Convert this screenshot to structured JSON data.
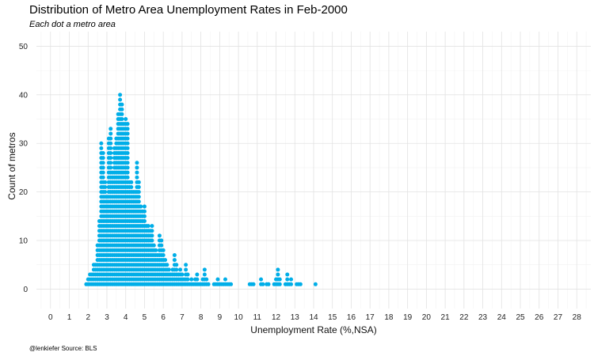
{
  "chart_data": {
    "type": "scatter",
    "title": "Distribution of Metro Area Unemployment Rates in Feb-2000",
    "subtitle": "Each dot a metro area",
    "xlabel": "Unemployment Rate (%,NSA)",
    "ylabel": "Count of metros",
    "caption": "@lenkiefer Source: BLS",
    "xlim": [
      -0.75,
      28.75
    ],
    "ylim": [
      -4,
      53
    ],
    "xticks": [
      0,
      1,
      2,
      3,
      4,
      5,
      6,
      7,
      8,
      9,
      10,
      11,
      12,
      13,
      14,
      15,
      16,
      17,
      18,
      19,
      20,
      21,
      22,
      23,
      24,
      25,
      26,
      27,
      28
    ],
    "yticks": [
      0,
      10,
      20,
      30,
      40,
      50
    ],
    "grid": true,
    "dot_color": "#00aee8",
    "bin_width": 0.1,
    "x": [
      1.9,
      2.0,
      2.1,
      2.2,
      2.3,
      2.4,
      2.5,
      2.6,
      2.7,
      2.8,
      2.9,
      3.0,
      3.1,
      3.2,
      3.3,
      3.4,
      3.5,
      3.6,
      3.7,
      3.8,
      3.9,
      4.0,
      4.1,
      4.2,
      4.3,
      4.4,
      4.5,
      4.6,
      4.7,
      4.8,
      4.9,
      5.0,
      5.1,
      5.2,
      5.3,
      5.4,
      5.5,
      5.6,
      5.7,
      5.8,
      5.9,
      6.0,
      6.1,
      6.2,
      6.3,
      6.4,
      6.5,
      6.6,
      6.7,
      6.8,
      6.9,
      7.0,
      7.1,
      7.2,
      7.3,
      7.4,
      7.5,
      7.6,
      7.7,
      7.8,
      7.9,
      8.0,
      8.1,
      8.2,
      8.3,
      8.4,
      8.7,
      8.8,
      8.9,
      9.0,
      9.1,
      9.2,
      9.3,
      9.4,
      9.5,
      9.6,
      10.6,
      10.7,
      10.8,
      11.2,
      11.3,
      11.5,
      11.6,
      11.9,
      12.0,
      12.1,
      12.2,
      12.5,
      12.6,
      12.7,
      12.8,
      13.1,
      13.2,
      13.3,
      14.1
    ],
    "y": [
      1,
      2,
      3,
      3,
      5,
      5,
      9,
      14,
      30,
      28,
      22,
      19,
      31,
      33,
      24,
      29,
      31,
      36,
      40,
      38,
      34,
      35,
      34,
      22,
      22,
      20,
      20,
      26,
      22,
      17,
      16,
      17,
      13,
      13,
      12,
      13,
      9,
      8,
      7,
      11,
      10,
      8,
      6,
      5,
      4,
      3,
      4,
      7,
      5,
      3,
      4,
      3,
      2,
      5,
      3,
      1,
      2,
      1,
      2,
      3,
      1,
      1,
      2,
      4,
      2,
      1,
      1,
      1,
      2,
      1,
      1,
      1,
      2,
      1,
      1,
      1,
      1,
      1,
      1,
      2,
      1,
      1,
      1,
      1,
      2,
      4,
      2,
      1,
      3,
      1,
      2,
      1,
      1,
      1,
      1
    ]
  }
}
